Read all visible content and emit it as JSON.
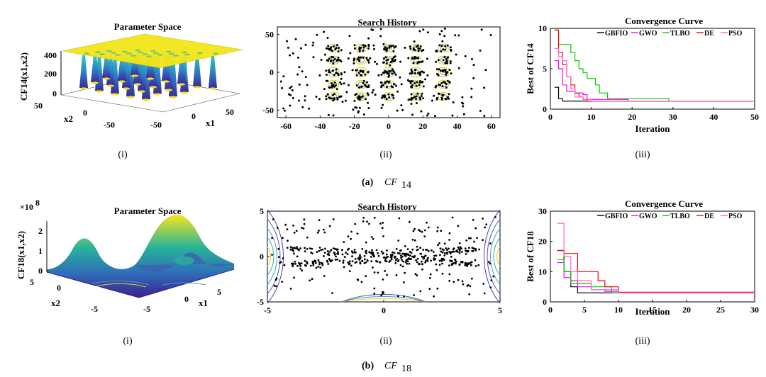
{
  "caption_a": {
    "letter": "(a)",
    "name": "CF",
    "sub": "14"
  },
  "caption_b": {
    "letter": "(b)",
    "name": "CF",
    "sub": "18"
  },
  "sublabels": [
    "(i)",
    "(ii)",
    "(iii)"
  ],
  "colors": {
    "GBFIO": "#000000",
    "GWO": "#ff00ff",
    "TLBO": "#00cc00",
    "DE": "#ff0000",
    "PSO": "#ff66cc",
    "surface_low": "#3b1f8f",
    "surface_high": "#f5e61c"
  },
  "chart_data": [
    {
      "type": "surface3d",
      "title": "Parameter Space",
      "zlabel": "CF14(x1,x2)",
      "xlabel": "x1",
      "ylabel": "x2",
      "zticks": [
        "400",
        "200",
        "0"
      ],
      "xticks": [
        "0",
        "50"
      ],
      "yticks": [
        "50",
        "0",
        "-50"
      ],
      "xticks_extra": [
        "-50"
      ]
    },
    {
      "type": "scatter",
      "title": "Search History",
      "xlim": [
        -65,
        65
      ],
      "ylim": [
        -60,
        60
      ],
      "xticks": [
        "-60",
        "-40",
        "-20",
        "0",
        "20",
        "40",
        "60"
      ],
      "yticks": [
        "50",
        "0",
        "-50"
      ],
      "cluster_centers_x": [
        -32,
        -16,
        0,
        16,
        32
      ],
      "cluster_centers_y": [
        -32,
        -16,
        0,
        16,
        32
      ]
    },
    {
      "type": "line",
      "title": "Convergence Curve",
      "xlabel": "Iteration",
      "ylabel": "Best of CF14",
      "xlim": [
        0,
        50
      ],
      "ylim": [
        0,
        10
      ],
      "xticks": [
        "0",
        "10",
        "20",
        "30",
        "40",
        "50"
      ],
      "yticks": [
        "10",
        "5",
        "0"
      ],
      "legend": [
        "GBFIO",
        "GWO",
        "TLBO",
        "DE",
        "PSO"
      ],
      "series": [
        {
          "name": "GBFIO",
          "x": [
            1,
            2,
            3,
            50
          ],
          "y": [
            2.7,
            1.3,
            1.0,
            1.0
          ]
        },
        {
          "name": "GWO",
          "x": [
            1,
            2,
            3,
            4,
            5,
            6,
            7,
            8,
            9,
            19,
            50
          ],
          "y": [
            6.0,
            5.0,
            3.0,
            2.2,
            2.2,
            2.0,
            2.0,
            1.8,
            1.2,
            1.0,
            1.0
          ]
        },
        {
          "name": "TLBO",
          "x": [
            1,
            2,
            3,
            4,
            5,
            6,
            7,
            8,
            9,
            10,
            11,
            12,
            13,
            14,
            28,
            29,
            50
          ],
          "y": [
            9.8,
            8.0,
            8.0,
            8.0,
            7.0,
            6.0,
            5.0,
            4.5,
            3.8,
            3.8,
            3.0,
            2.0,
            2.0,
            1.3,
            1.3,
            1.0,
            1.0
          ]
        },
        {
          "name": "DE",
          "x": [
            1,
            2,
            3,
            4,
            5,
            6,
            7,
            8,
            9,
            50
          ],
          "y": [
            9.8,
            7.0,
            5.5,
            4.0,
            3.0,
            2.0,
            1.5,
            1.2,
            1.0,
            1.0
          ]
        },
        {
          "name": "PSO",
          "x": [
            1,
            2,
            3,
            4,
            5,
            6,
            7,
            8,
            9,
            10,
            50
          ],
          "y": [
            7.5,
            6.5,
            6.0,
            4.0,
            2.5,
            1.5,
            1.5,
            1.2,
            1.2,
            1.0,
            1.0
          ]
        }
      ]
    },
    {
      "type": "surface3d",
      "title": "Parameter Space",
      "zlabel": "CF18(x1,x2)",
      "zscale": "×10",
      "zscale_exp": "8",
      "xlabel": "x1",
      "ylabel": "x2",
      "zticks": [
        "2",
        "1",
        "0"
      ],
      "xticks": [
        "0",
        "5"
      ],
      "yticks": [
        "5",
        "0",
        "-5"
      ],
      "xticks_extra": [
        "-5"
      ]
    },
    {
      "type": "scatter",
      "title": "Search History",
      "xlim": [
        -5,
        5
      ],
      "ylim": [
        -5,
        5
      ],
      "xticks": [
        "-5",
        "0",
        "5"
      ],
      "yticks": [
        "5",
        "0",
        "-5"
      ]
    },
    {
      "type": "line",
      "title": "Convergence Curve",
      "xlabel": "Iteration",
      "ylabel": "Best of CF18",
      "xlim": [
        0,
        30
      ],
      "ylim": [
        0,
        30
      ],
      "xticks": [
        "0",
        "5",
        "10",
        "15",
        "20",
        "25",
        "30"
      ],
      "yticks": [
        "30",
        "20",
        "10",
        "0"
      ],
      "legend": [
        "GBFIO",
        "GWO",
        "TLBO",
        "DE",
        "PSO"
      ],
      "series": [
        {
          "name": "GBFIO",
          "x": [
            1,
            2,
            3,
            4,
            30
          ],
          "y": [
            17,
            10,
            5,
            3,
            3
          ]
        },
        {
          "name": "GWO",
          "x": [
            1,
            2,
            3,
            4,
            6,
            8,
            10,
            30
          ],
          "y": [
            13,
            8,
            7,
            5,
            4,
            3.5,
            3,
            3
          ]
        },
        {
          "name": "TLBO",
          "x": [
            1,
            2,
            3,
            4,
            6,
            8,
            9,
            30
          ],
          "y": [
            14,
            10,
            6,
            6,
            5,
            5,
            3,
            3
          ]
        },
        {
          "name": "DE",
          "x": [
            1,
            2,
            3,
            4,
            5,
            7,
            8,
            9,
            10,
            30
          ],
          "y": [
            17,
            16,
            16,
            10,
            10,
            7,
            5,
            5,
            3.2,
            3
          ]
        },
        {
          "name": "PSO",
          "x": [
            1,
            2,
            3,
            4,
            6,
            8,
            10,
            30
          ],
          "y": [
            26,
            15,
            10,
            7,
            4,
            4,
            3,
            3
          ]
        }
      ]
    }
  ]
}
